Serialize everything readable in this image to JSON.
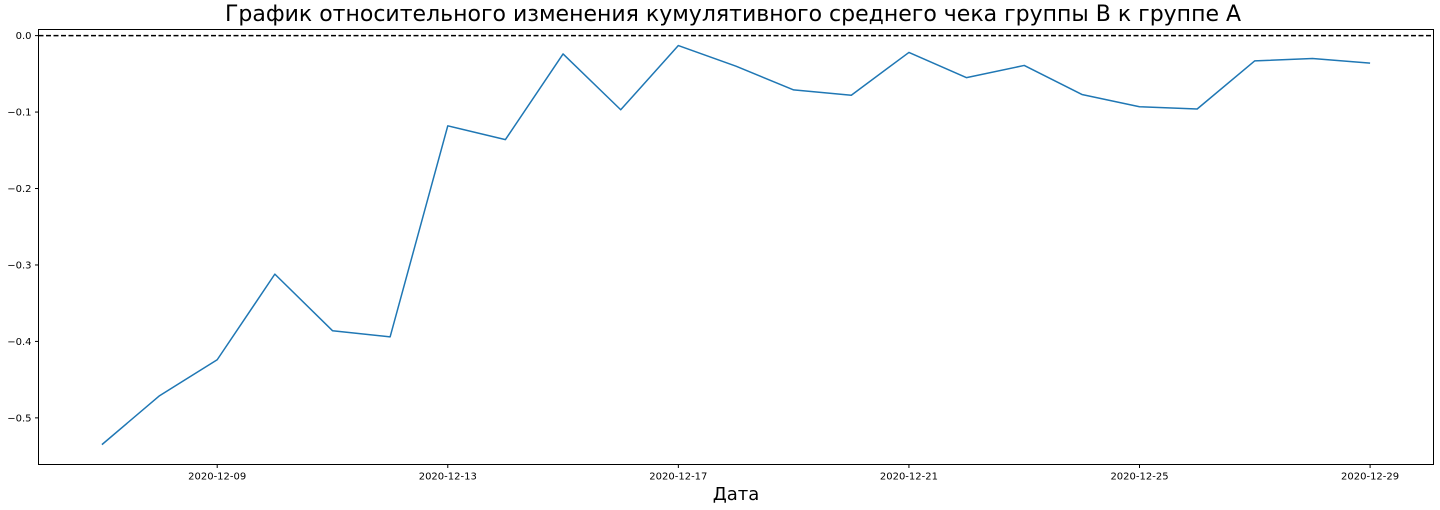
{
  "chart_data": {
    "type": "line",
    "title": "График относительного изменения кумулятивного среднего чека группы B к группе A",
    "xlabel": "Дата",
    "ylabel": "",
    "x": [
      "2020-12-07",
      "2020-12-08",
      "2020-12-09",
      "2020-12-10",
      "2020-12-11",
      "2020-12-12",
      "2020-12-13",
      "2020-12-14",
      "2020-12-15",
      "2020-12-16",
      "2020-12-17",
      "2020-12-18",
      "2020-12-19",
      "2020-12-20",
      "2020-12-21",
      "2020-12-22",
      "2020-12-23",
      "2020-12-24",
      "2020-12-25",
      "2020-12-26",
      "2020-12-27",
      "2020-12-28",
      "2020-12-29"
    ],
    "series": [
      {
        "values": [
          -0.535,
          -0.471,
          -0.424,
          -0.312,
          -0.386,
          -0.394,
          -0.118,
          -0.136,
          -0.024,
          -0.097,
          -0.013,
          -0.04,
          -0.071,
          -0.078,
          -0.022,
          -0.055,
          -0.039,
          -0.077,
          -0.093,
          -0.096,
          -0.033,
          -0.03,
          -0.036
        ],
        "color": "#1f77b4"
      }
    ],
    "xlim": [
      "2020-12-05T21:36",
      "2020-12-30T02:24"
    ],
    "ylim": [
      -0.561,
      0.008
    ],
    "x_ticks": [
      "2020-12-09",
      "2020-12-13",
      "2020-12-17",
      "2020-12-21",
      "2020-12-25",
      "2020-12-29"
    ],
    "y_ticks": [
      0.0,
      -0.1,
      -0.2,
      -0.3,
      -0.4,
      -0.5
    ],
    "y_tick_labels": [
      "0.0",
      "−0.1",
      "−0.2",
      "−0.3",
      "−0.4",
      "−0.5"
    ],
    "reference_line": {
      "y": 0,
      "style": "dashed",
      "color": "#000000"
    },
    "grid": false,
    "legend": "none"
  }
}
